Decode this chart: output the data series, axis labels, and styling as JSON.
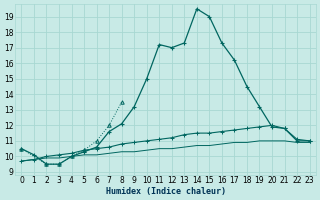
{
  "xlabel": "Humidex (Indice chaleur)",
  "background_color": "#c8eae6",
  "grid_color": "#a8d8d2",
  "line_color": "#006660",
  "xlim": [
    -0.5,
    23.5
  ],
  "ylim": [
    8.8,
    19.8
  ],
  "xticks": [
    0,
    1,
    2,
    3,
    4,
    5,
    6,
    7,
    8,
    9,
    10,
    11,
    12,
    13,
    14,
    15,
    16,
    17,
    18,
    19,
    20,
    21,
    22,
    23
  ],
  "yticks": [
    9,
    10,
    11,
    12,
    13,
    14,
    15,
    16,
    17,
    18,
    19
  ],
  "s1_x": [
    0,
    1,
    2,
    3,
    4,
    5,
    6,
    7,
    8,
    9,
    10,
    11,
    12,
    13,
    14,
    15,
    16,
    17,
    18,
    19,
    20,
    21,
    22,
    23
  ],
  "s1_y": [
    10.5,
    10.1,
    9.5,
    9.5,
    10.0,
    10.3,
    10.6,
    11.6,
    12.1,
    13.2,
    15.0,
    17.2,
    17.0,
    17.3,
    19.5,
    19.0,
    17.3,
    16.2,
    14.5,
    13.2,
    11.9,
    11.8,
    11.0,
    11.0
  ],
  "s2_x": [
    0,
    1,
    2,
    3,
    4,
    5,
    6,
    7,
    8,
    9,
    10,
    11,
    12,
    13,
    14,
    15,
    16,
    17,
    18,
    19,
    20,
    21,
    22,
    23
  ],
  "s2_y": [
    9.7,
    9.8,
    10.0,
    10.1,
    10.2,
    10.4,
    10.5,
    10.6,
    10.8,
    10.9,
    11.0,
    11.1,
    11.2,
    11.4,
    11.5,
    11.5,
    11.6,
    11.7,
    11.8,
    11.9,
    12.0,
    11.8,
    11.1,
    11.0
  ],
  "s3_x": [
    0,
    1,
    2,
    3,
    4,
    5,
    6,
    7,
    8,
    9,
    10,
    11,
    12,
    13,
    14,
    15,
    16,
    17,
    18,
    19,
    20,
    21,
    22,
    23
  ],
  "s3_y": [
    9.7,
    9.8,
    9.9,
    9.9,
    10.0,
    10.1,
    10.1,
    10.2,
    10.3,
    10.3,
    10.4,
    10.5,
    10.5,
    10.6,
    10.7,
    10.7,
    10.8,
    10.9,
    10.9,
    11.0,
    11.0,
    11.0,
    10.9,
    10.9
  ],
  "s4_x": [
    0,
    2,
    3,
    4,
    5,
    6,
    7,
    8
  ],
  "s4_y": [
    10.5,
    9.5,
    9.5,
    10.0,
    10.4,
    11.0,
    12.0,
    13.5
  ]
}
